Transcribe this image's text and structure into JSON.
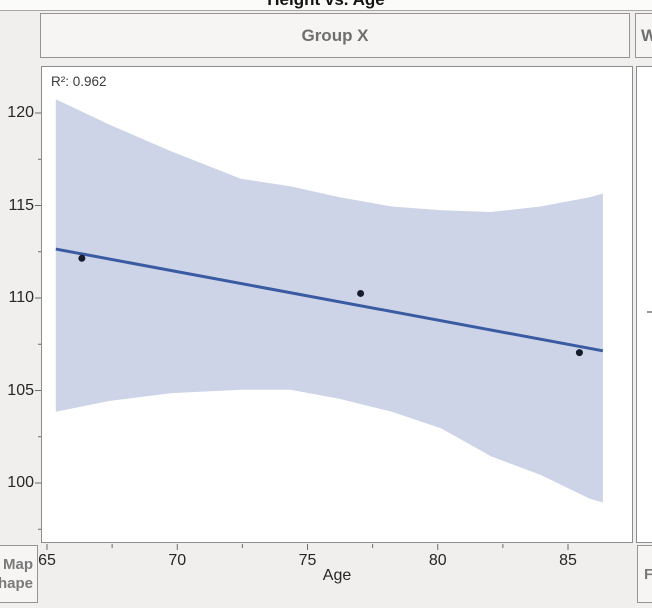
{
  "window": {
    "title": "Height vs. Age"
  },
  "panels": {
    "group_x": {
      "header": "Group X"
    },
    "group_w": {
      "header_partial": "W"
    }
  },
  "drop_zones": {
    "map_shape": {
      "line1": "Map",
      "line2": "Shape"
    },
    "freq_partial": "F"
  },
  "annotation": {
    "r_squared": "R²: 0.962"
  },
  "colors": {
    "band": "#cdd4e8",
    "line": "#3a5ba1",
    "point": "#171c2b",
    "tick": "#6b6b6b",
    "panel_border": "#8c8c8c"
  },
  "axes": {
    "x": {
      "label": "Age",
      "ticks": [
        65,
        70,
        75,
        80,
        85
      ],
      "minor_ticks": [
        67.5,
        72.5,
        77.5,
        82.5
      ],
      "range": [
        64.8,
        87.5
      ]
    },
    "y": {
      "label": "",
      "ticks": [
        120,
        115,
        110,
        105,
        100
      ],
      "minor_ticks": [
        117.5,
        112.5,
        107.5,
        102.5,
        97.5
      ],
      "range": [
        96.8,
        122.4
      ]
    }
  },
  "chart_data": {
    "type": "scatter",
    "title": "Height vs. Age",
    "facet": "Group X",
    "xlabel": "Age",
    "ylabel": "",
    "xlim": [
      64.8,
      87.5
    ],
    "ylim": [
      96.8,
      122.4
    ],
    "x_ticks": [
      65,
      70,
      75,
      80,
      85
    ],
    "y_ticks": [
      100,
      105,
      110,
      115,
      120
    ],
    "grid": false,
    "points": [
      {
        "x": 66.3,
        "y": 112.2
      },
      {
        "x": 77.0,
        "y": 110.3
      },
      {
        "x": 85.4,
        "y": 107.1
      }
    ],
    "fit": {
      "type": "linear",
      "r_squared": 0.962,
      "line_endpoints": [
        {
          "x": 65.3,
          "y": 112.7
        },
        {
          "x": 86.3,
          "y": 107.2
        }
      ]
    },
    "confidence_band": {
      "samples": [
        {
          "x": 65.3,
          "upper": 120.8,
          "lower": 103.9
        },
        {
          "x": 67.4,
          "upper": 119.4,
          "lower": 104.5
        },
        {
          "x": 69.7,
          "upper": 118.0,
          "lower": 104.9
        },
        {
          "x": 72.4,
          "upper": 116.5,
          "lower": 105.1
        },
        {
          "x": 74.3,
          "upper": 116.1,
          "lower": 105.1
        },
        {
          "x": 76.2,
          "upper": 115.5,
          "lower": 104.6
        },
        {
          "x": 78.2,
          "upper": 115.0,
          "lower": 103.9
        },
        {
          "x": 80.1,
          "upper": 114.8,
          "lower": 103.0
        },
        {
          "x": 82.0,
          "upper": 114.7,
          "lower": 101.5
        },
        {
          "x": 83.9,
          "upper": 115.0,
          "lower": 100.5
        },
        {
          "x": 85.8,
          "upper": 115.5,
          "lower": 99.2
        },
        {
          "x": 86.3,
          "upper": 115.7,
          "lower": 99.0
        }
      ]
    }
  }
}
